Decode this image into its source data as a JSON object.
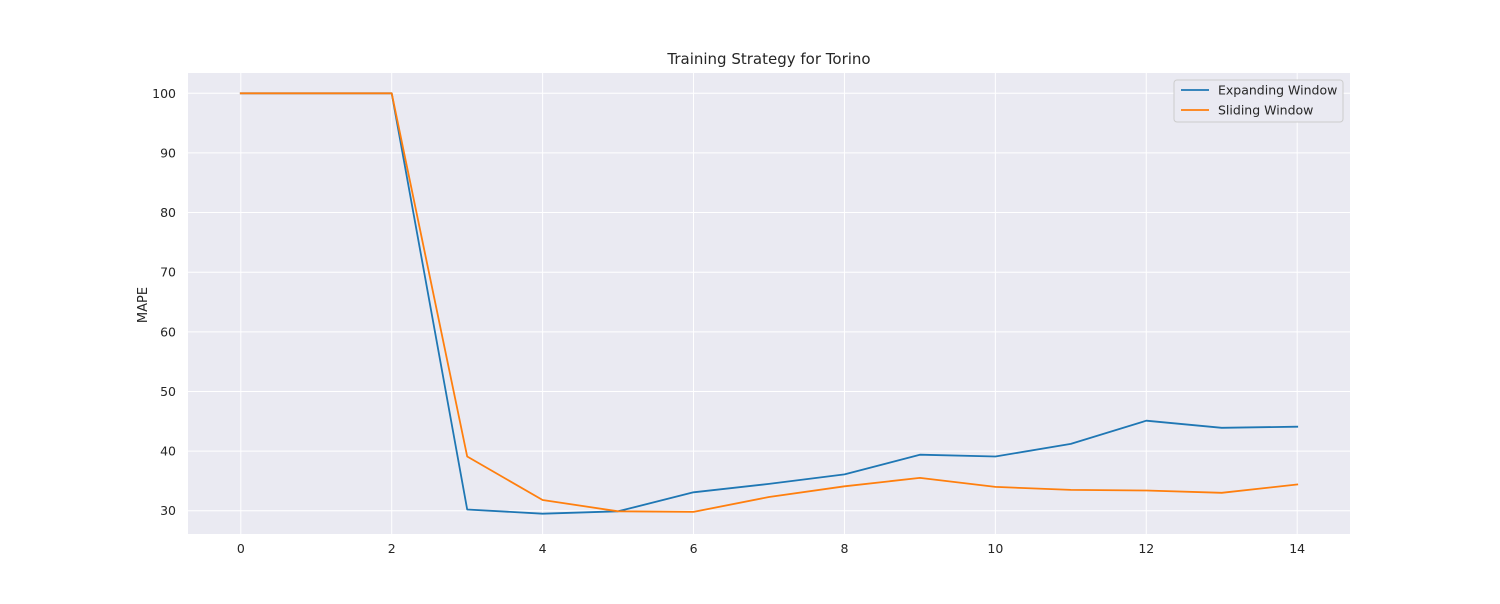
{
  "chart_data": {
    "type": "line",
    "title": "Training Strategy for Torino",
    "xlabel": "",
    "ylabel": "MAPE",
    "xlim": [
      -0.7,
      14.7
    ],
    "ylim": [
      26.1,
      103.4
    ],
    "xticks": [
      0,
      2,
      4,
      6,
      8,
      10,
      12,
      14
    ],
    "yticks": [
      30,
      40,
      50,
      60,
      70,
      80,
      90,
      100
    ],
    "grid": true,
    "legend_position": "top-right",
    "x": [
      0,
      1,
      2,
      3,
      4,
      5,
      6,
      7,
      8,
      9,
      10,
      11,
      12,
      13,
      14
    ],
    "series": [
      {
        "name": "Expanding Window",
        "color": "#1f77b4",
        "values": [
          100,
          100,
          100,
          30.2,
          29.5,
          29.9,
          33.1,
          34.5,
          36.1,
          39.4,
          39.1,
          41.2,
          45.1,
          43.9,
          44.1
        ]
      },
      {
        "name": "Sliding Window",
        "color": "#ff7f0e",
        "values": [
          100,
          100,
          100,
          39.1,
          31.8,
          29.9,
          29.8,
          32.3,
          34.1,
          35.5,
          34.0,
          33.5,
          33.4,
          33.0,
          34.4
        ]
      }
    ]
  }
}
